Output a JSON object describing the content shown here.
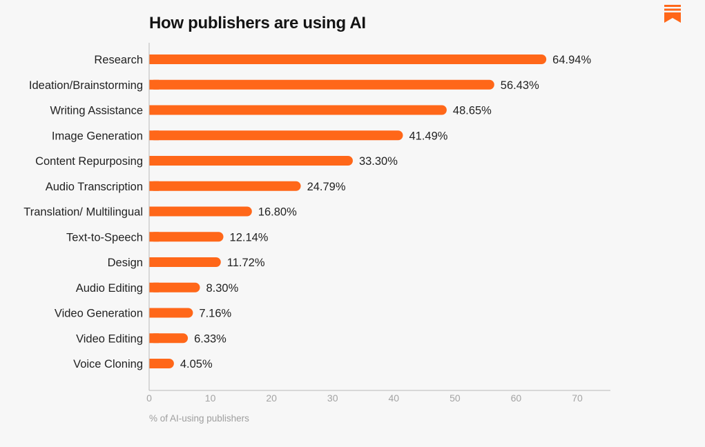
{
  "header": {
    "title": "How publishers are using AI",
    "logo_icon": "substack-bookmark-icon"
  },
  "colors": {
    "bar": "#ff6719",
    "axis": "#b8b8b8",
    "tick_text": "#a3a3a3",
    "background": "#f7f7f7"
  },
  "chart_data": {
    "type": "bar",
    "orientation": "horizontal",
    "title": "How publishers are using AI",
    "xlabel": "% of AI-using publishers",
    "ylabel": "",
    "xlim": [
      0,
      70
    ],
    "x_ticks": [
      0,
      10,
      20,
      30,
      40,
      50,
      60,
      70
    ],
    "grid": false,
    "categories": [
      "Research",
      "Ideation/Brainstorming",
      "Writing Assistance",
      "Image Generation",
      "Content Repurposing",
      "Audio Transcription",
      "Translation/ Multilingual",
      "Text-to-Speech",
      "Design",
      "Audio Editing",
      "Video Generation",
      "Video Editing",
      "Voice Cloning"
    ],
    "values": [
      64.94,
      56.43,
      48.65,
      41.49,
      33.3,
      24.79,
      16.8,
      12.14,
      11.72,
      8.3,
      7.16,
      6.33,
      4.05
    ],
    "value_labels": [
      "64.94%",
      "56.43%",
      "48.65%",
      "41.49%",
      "33.30%",
      "24.79%",
      "16.80%",
      "12.14%",
      "11.72%",
      "8.30%",
      "7.16%",
      "6.33%",
      "4.05%"
    ]
  }
}
